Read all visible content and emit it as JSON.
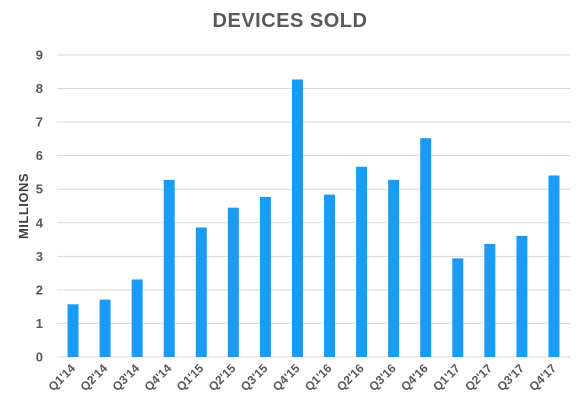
{
  "chart_data": {
    "type": "bar",
    "title": "DEVICES SOLD",
    "xlabel": "",
    "ylabel": "MILLIONS",
    "ylim": [
      0,
      9
    ],
    "yticks": [
      "0",
      "1",
      "2",
      "3",
      "4",
      "5",
      "6",
      "7",
      "8",
      "9"
    ],
    "grid": true,
    "legend": "none",
    "bar_color": "#1a9bf5",
    "grid_color": "#d9d9d9",
    "categories": [
      "Q1'14",
      "Q2'14",
      "Q3'14",
      "Q4'14",
      "Q1'15",
      "Q2'15",
      "Q3'15",
      "Q4'15",
      "Q1'16",
      "Q2'16",
      "Q3'16",
      "Q4'16",
      "Q1'17",
      "Q2'17",
      "Q3'17",
      "Q4'17"
    ],
    "values": [
      1.57,
      1.71,
      2.31,
      5.28,
      3.86,
      4.45,
      4.77,
      8.27,
      4.84,
      5.67,
      5.28,
      6.52,
      2.94,
      3.37,
      3.61,
      5.41
    ]
  }
}
